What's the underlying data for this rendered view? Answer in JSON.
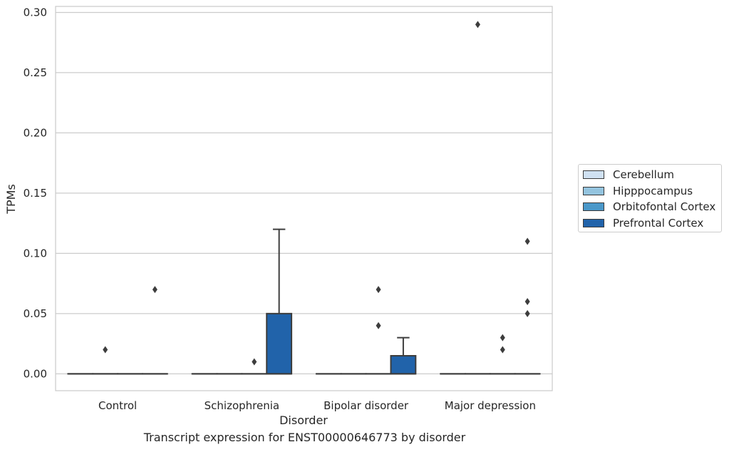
{
  "chart_data": {
    "type": "box",
    "title": "",
    "caption": "Transcript expression for ENST00000646773 by disorder",
    "xlabel": "Disorder",
    "ylabel": "TPMs",
    "ylim": [
      -0.014,
      0.305
    ],
    "yticks": [
      "0.00",
      "0.05",
      "0.10",
      "0.15",
      "0.20",
      "0.25",
      "0.30"
    ],
    "ytick_values": [
      0,
      0.05,
      0.1,
      0.15,
      0.2,
      0.25,
      0.3
    ],
    "grid": true,
    "legend_position": "right",
    "categories": [
      "Control",
      "Schizophrenia",
      "Bipolar disorder",
      "Major depression"
    ],
    "series": [
      {
        "name": "Cerebellum",
        "color": "#d0e1f2",
        "boxes": [
          {
            "q1": 0,
            "median": 0,
            "q3": 0,
            "whisker_low": 0,
            "whisker_high": 0,
            "outliers": []
          },
          {
            "q1": 0,
            "median": 0,
            "q3": 0,
            "whisker_low": 0,
            "whisker_high": 0,
            "outliers": []
          },
          {
            "q1": 0,
            "median": 0,
            "q3": 0,
            "whisker_low": 0,
            "whisker_high": 0,
            "outliers": []
          },
          {
            "q1": 0,
            "median": 0,
            "q3": 0,
            "whisker_low": 0,
            "whisker_high": 0,
            "outliers": []
          }
        ]
      },
      {
        "name": "Hipppocampus",
        "color": "#94c4df",
        "boxes": [
          {
            "q1": 0,
            "median": 0,
            "q3": 0,
            "whisker_low": 0,
            "whisker_high": 0,
            "outliers": [
              0.02
            ]
          },
          {
            "q1": 0,
            "median": 0,
            "q3": 0,
            "whisker_low": 0,
            "whisker_high": 0,
            "outliers": []
          },
          {
            "q1": 0,
            "median": 0,
            "q3": 0,
            "whisker_low": 0,
            "whisker_high": 0,
            "outliers": []
          },
          {
            "q1": 0,
            "median": 0,
            "q3": 0,
            "whisker_low": 0,
            "whisker_high": 0,
            "outliers": [
              0.29
            ]
          }
        ]
      },
      {
        "name": "Orbitofontal Cortex",
        "color": "#4a98c9",
        "boxes": [
          {
            "q1": 0,
            "median": 0,
            "q3": 0,
            "whisker_low": 0,
            "whisker_high": 0,
            "outliers": []
          },
          {
            "q1": 0,
            "median": 0,
            "q3": 0,
            "whisker_low": 0,
            "whisker_high": 0,
            "outliers": [
              0.01
            ]
          },
          {
            "q1": 0,
            "median": 0,
            "q3": 0,
            "whisker_low": 0,
            "whisker_high": 0,
            "outliers": [
              0.04,
              0.07
            ]
          },
          {
            "q1": 0,
            "median": 0,
            "q3": 0,
            "whisker_low": 0,
            "whisker_high": 0,
            "outliers": [
              0.02,
              0.03
            ]
          }
        ]
      },
      {
        "name": "Prefrontal Cortex",
        "color": "#2163aa",
        "boxes": [
          {
            "q1": 0,
            "median": 0,
            "q3": 0,
            "whisker_low": 0,
            "whisker_high": 0,
            "outliers": [
              0.07
            ]
          },
          {
            "q1": 0,
            "median": 0,
            "q3": 0.05,
            "whisker_low": 0,
            "whisker_high": 0.12,
            "outliers": []
          },
          {
            "q1": 0,
            "median": 0,
            "q3": 0.015,
            "whisker_low": 0,
            "whisker_high": 0.03,
            "outliers": []
          },
          {
            "q1": 0,
            "median": 0,
            "q3": 0,
            "whisker_low": 0,
            "whisker_high": 0,
            "outliers": [
              0.05,
              0.06,
              0.11
            ]
          }
        ]
      }
    ]
  }
}
